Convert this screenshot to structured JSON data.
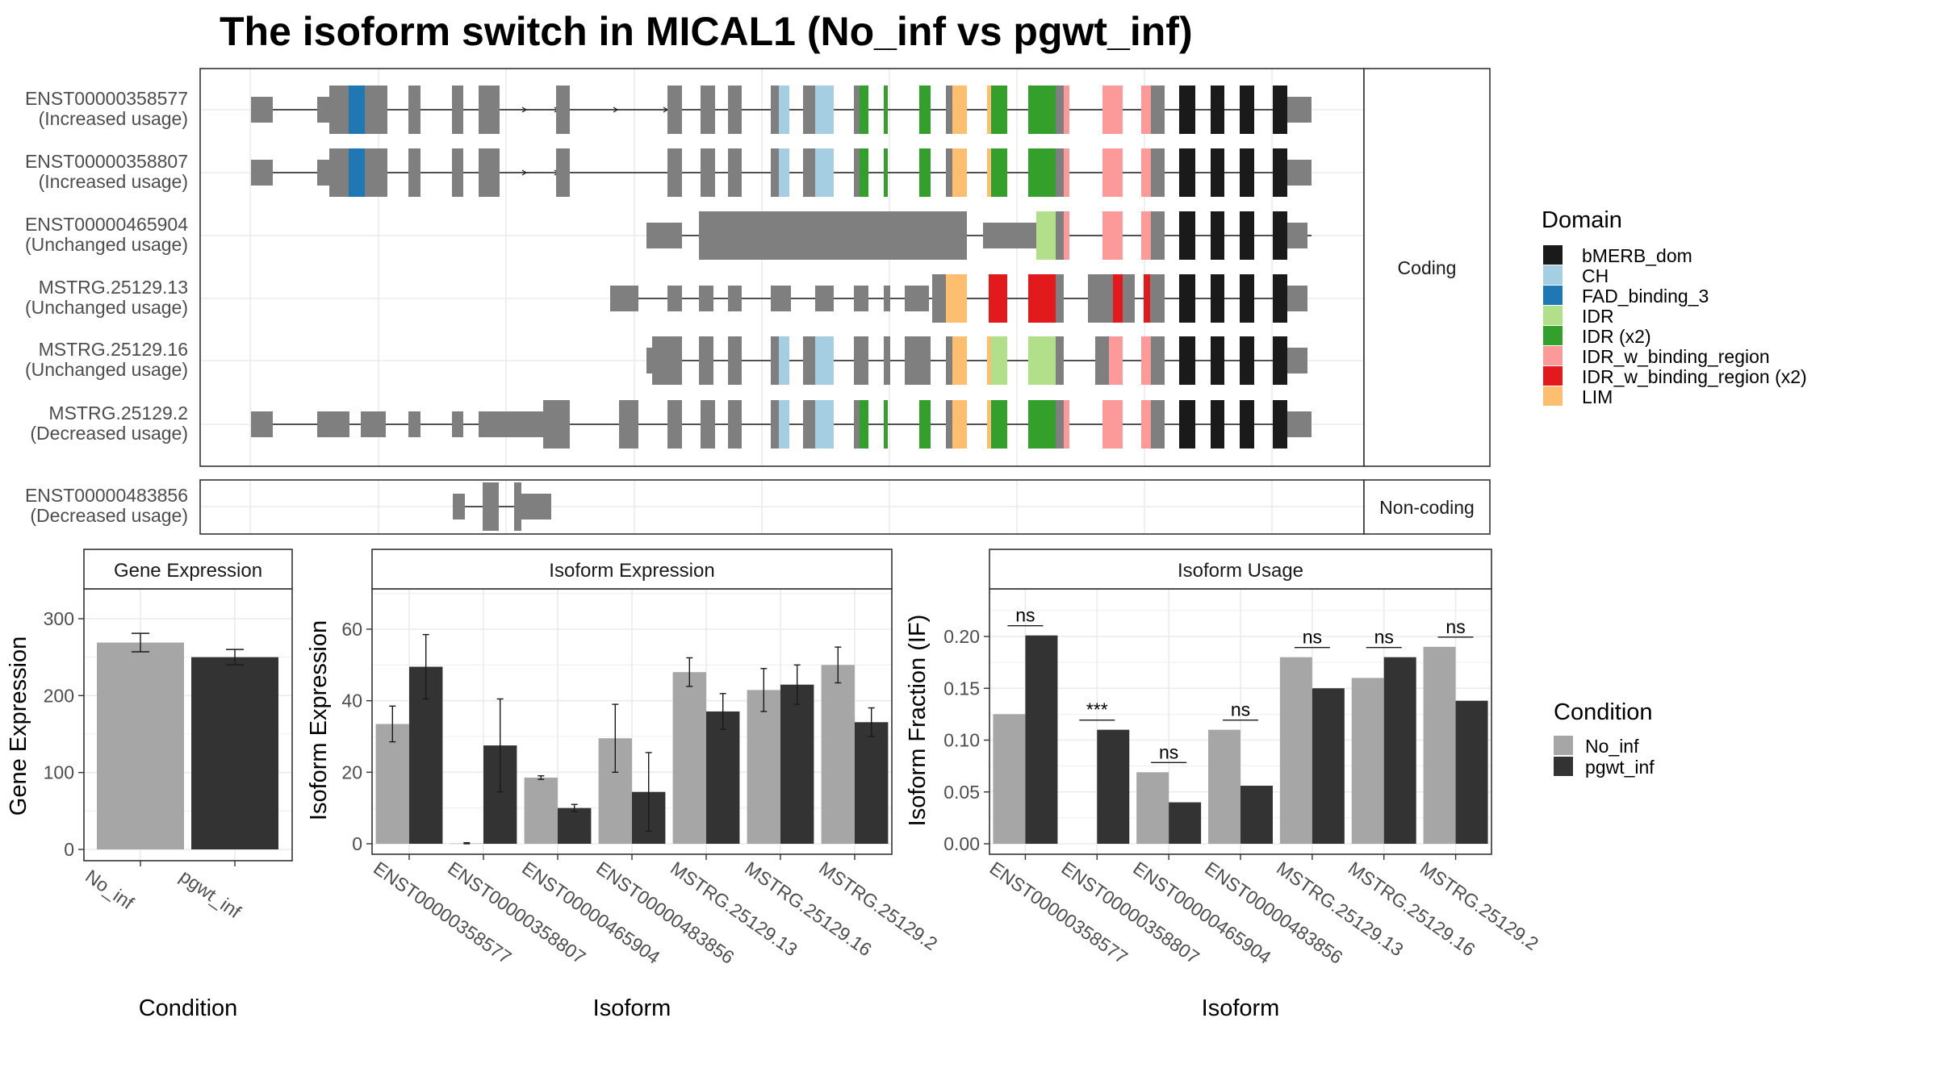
{
  "title": "The isoform switch in MICAL1 (No_inf vs pgwt_inf)",
  "colors": {
    "grid": "#ebebeb",
    "panel_border": "#333333",
    "strip_fill": "#ffffff",
    "exon_default": "#7f7f7f",
    "no_inf": "#a6a6a6",
    "pgwt_inf": "#333333"
  },
  "structure": {
    "facets": {
      "coding": "Coding",
      "noncoding": "Non-coding"
    },
    "isoforms": [
      {
        "id": "ENST00000358577",
        "usage": "(Increased usage)",
        "facet": "coding"
      },
      {
        "id": "ENST00000358807",
        "usage": "(Increased usage)",
        "facet": "coding"
      },
      {
        "id": "ENST00000465904",
        "usage": "(Unchanged usage)",
        "facet": "coding"
      },
      {
        "id": "MSTRG.25129.13",
        "usage": "(Unchanged usage)",
        "facet": "coding"
      },
      {
        "id": "MSTRG.25129.16",
        "usage": "(Unchanged usage)",
        "facet": "coding"
      },
      {
        "id": "MSTRG.25129.2",
        "usage": "(Decreased usage)",
        "facet": "coding"
      },
      {
        "id": "ENST00000483856",
        "usage": "(Decreased usage)",
        "facet": "noncoding"
      }
    ]
  },
  "domain_legend": {
    "title": "Domain",
    "items": [
      {
        "label": "bMERB_dom",
        "color": "#1a1a1a"
      },
      {
        "label": "CH",
        "color": "#a6cee3"
      },
      {
        "label": "FAD_binding_3",
        "color": "#1f78b4"
      },
      {
        "label": "IDR",
        "color": "#b2df8a"
      },
      {
        "label": "IDR (x2)",
        "color": "#33a02c"
      },
      {
        "label": "IDR_w_binding_region",
        "color": "#fb9a99"
      },
      {
        "label": "IDR_w_binding_region (x2)",
        "color": "#e31a1c"
      },
      {
        "label": "LIM",
        "color": "#fdbf6f"
      }
    ]
  },
  "condition_legend": {
    "title": "Condition",
    "items": [
      {
        "label": "No_inf",
        "color": "#a6a6a6"
      },
      {
        "label": "pgwt_inf",
        "color": "#333333"
      }
    ]
  },
  "chart_data": [
    {
      "type": "bar",
      "title": "Gene Expression",
      "xlabel": "Condition",
      "ylabel": "Gene Expression",
      "categories": [
        "No_inf",
        "pgwt_inf"
      ],
      "values": [
        269,
        250
      ],
      "errors": [
        12,
        10
      ],
      "ylim": [
        0,
        330
      ],
      "yticks": [
        0,
        100,
        200,
        300
      ],
      "grid": true
    },
    {
      "type": "bar",
      "title": "Isoform Expression",
      "xlabel": "Isoform",
      "ylabel": "Isoform Expression",
      "categories": [
        "ENST00000358577",
        "ENST00000358807",
        "ENST00000465904",
        "ENST00000483856",
        "MSTRG.25129.13",
        "MSTRG.25129.16",
        "MSTRG.25129.2"
      ],
      "series": [
        {
          "name": "No_inf",
          "values": [
            33.5,
            0.1,
            18.5,
            29.5,
            48,
            43,
            50
          ],
          "errors": [
            5,
            0.2,
            0.5,
            9.5,
            4,
            6,
            5
          ]
        },
        {
          "name": "pgwt_inf",
          "values": [
            49.5,
            27.5,
            10,
            14.5,
            37,
            44.5,
            34
          ],
          "errors": [
            9,
            13,
            1,
            11,
            5,
            5.5,
            4
          ]
        }
      ],
      "ylim": [
        0,
        70
      ],
      "yticks": [
        0,
        20,
        40,
        60
      ],
      "grid": true
    },
    {
      "type": "bar",
      "title": "Isoform Usage",
      "xlabel": "Isoform",
      "ylabel": "Isoform Fraction (IF)",
      "categories": [
        "ENST00000358577",
        "ENST00000358807",
        "ENST00000465904",
        "ENST00000483856",
        "MSTRG.25129.13",
        "MSTRG.25129.16",
        "MSTRG.25129.2"
      ],
      "series": [
        {
          "name": "No_inf",
          "values": [
            0.125,
            0.0,
            0.069,
            0.11,
            0.18,
            0.16,
            0.19
          ]
        },
        {
          "name": "pgwt_inf",
          "values": [
            0.201,
            0.11,
            0.04,
            0.056,
            0.15,
            0.18,
            0.138
          ]
        }
      ],
      "significance": [
        "ns",
        "***",
        "ns",
        "ns",
        "ns",
        "ns",
        "ns"
      ],
      "ylim": [
        0,
        0.245
      ],
      "yticks": [
        "0.00",
        "0.05",
        "0.10",
        "0.15",
        "0.20"
      ],
      "grid": true
    }
  ]
}
